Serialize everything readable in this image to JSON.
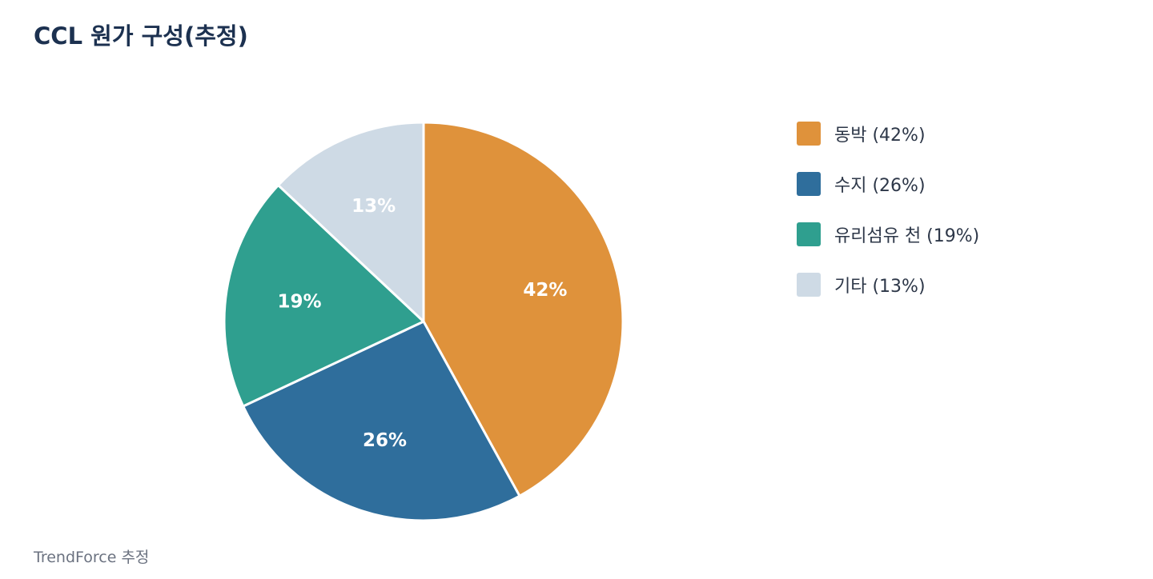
{
  "header": {
    "title": "CCL 원가 구성(추정)"
  },
  "chart_data": {
    "type": "pie",
    "categories": [
      "동박",
      "수지",
      "유리섬유 천",
      "기타"
    ],
    "values": [
      42,
      26,
      19,
      13
    ],
    "slice_labels": [
      "42%",
      "26%",
      "19%",
      "13%"
    ],
    "colors": [
      "#df923b",
      "#2f6e9c",
      "#2f9f8f",
      "#ceda e5"
    ],
    "legend": {
      "placement": "right",
      "entries": [
        "동박 (42%)",
        "수지 (26%)",
        "유리섬유 천 (19%)",
        "기타 (13%)"
      ]
    }
  },
  "footer": {
    "source": "TrendForce 추정"
  }
}
